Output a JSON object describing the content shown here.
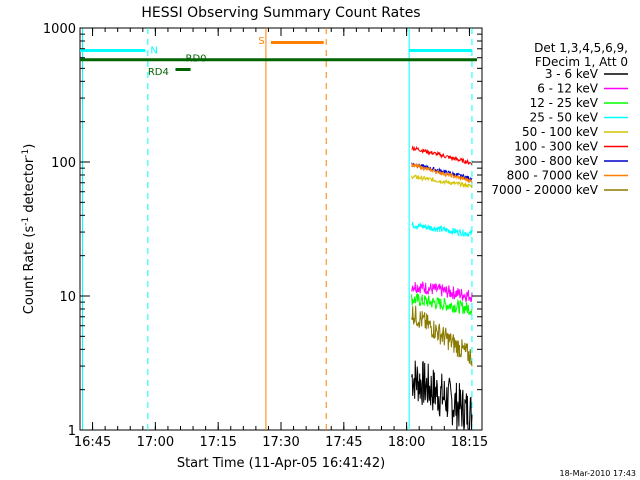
{
  "chart_data": {
    "type": "line",
    "title": "HESSI Observing Summary Count Rates",
    "xlabel": "Start Time (11-Apr-05 16:41:42)",
    "ylabel_main": "Count Rate (s",
    "ylabel_sup1": "-1",
    "ylabel_mid": " detector",
    "ylabel_sup2": "-1",
    "ylabel_end": ")",
    "y_scale": "log",
    "ylim": [
      1,
      1000
    ],
    "xlim_minutes": [
      16.7,
      18.3
    ],
    "xlim_clock": [
      "16:41:42",
      "18:20:00"
    ],
    "x_ticks": [
      {
        "label": "16:45",
        "min": 16.75
      },
      {
        "label": "17:00",
        "min": 17.0
      },
      {
        "label": "17:15",
        "min": 17.25
      },
      {
        "label": "17:30",
        "min": 17.5
      },
      {
        "label": "17:45",
        "min": 17.75
      },
      {
        "label": "18:00",
        "min": 18.0
      },
      {
        "label": "18:15",
        "min": 18.25
      }
    ],
    "y_ticks": [
      {
        "label": "1",
        "v": 1
      },
      {
        "label": "10",
        "v": 10
      },
      {
        "label": "100",
        "v": 100
      },
      {
        "label": "1000",
        "v": 1000
      }
    ],
    "legend": {
      "placement": "right",
      "header": [
        "Det 1,3,4,5,6,9,",
        "FDecim 1, Att 0"
      ],
      "entries": [
        {
          "label": "3 - 6 keV",
          "color": "#000000"
        },
        {
          "label": "6 - 12 keV",
          "color": "#ff00ff"
        },
        {
          "label": "12 - 25 keV",
          "color": "#00ff00"
        },
        {
          "label": "25 - 50 keV",
          "color": "#00ffff"
        },
        {
          "label": "50 - 100 keV",
          "color": "#d4c400"
        },
        {
          "label": "100 - 300 keV",
          "color": "#ff0000"
        },
        {
          "label": "300 - 800 keV",
          "color": "#0000cc"
        },
        {
          "label": "800 - 7000 keV",
          "color": "#ff8000"
        },
        {
          "label": "7000 - 20000 keV",
          "color": "#8b7a00"
        }
      ]
    },
    "series": [
      {
        "name": "3 - 6 keV",
        "color": "#000000",
        "start": 18.02,
        "end": 18.26,
        "v_start": 2.5,
        "v_end": 1.3,
        "noise": 0.18
      },
      {
        "name": "6 - 12 keV",
        "color": "#ff00ff",
        "start": 18.02,
        "end": 18.26,
        "v_start": 12,
        "v_end": 10,
        "noise": 0.05
      },
      {
        "name": "12 - 25 keV",
        "color": "#00ff00",
        "start": 18.02,
        "end": 18.26,
        "v_start": 9.5,
        "v_end": 8,
        "noise": 0.05
      },
      {
        "name": "25 - 50 keV",
        "color": "#00ffff",
        "start": 18.02,
        "end": 18.26,
        "v_start": 34,
        "v_end": 29,
        "noise": 0.025
      },
      {
        "name": "50 - 100 keV",
        "color": "#d4c400",
        "start": 18.02,
        "end": 18.26,
        "v_start": 78,
        "v_end": 66,
        "noise": 0.015
      },
      {
        "name": "100 - 300 keV",
        "color": "#ff0000",
        "start": 18.02,
        "end": 18.26,
        "v_start": 128,
        "v_end": 98,
        "noise": 0.015
      },
      {
        "name": "300 - 800 keV",
        "color": "#0000cc",
        "start": 18.02,
        "end": 18.26,
        "v_start": 97,
        "v_end": 75,
        "noise": 0.015
      },
      {
        "name": "800 - 7000 keV",
        "color": "#ff8000",
        "start": 18.02,
        "end": 18.26,
        "v_start": 95,
        "v_end": 72,
        "noise": 0.015
      },
      {
        "name": "7000 - 20000 keV",
        "color": "#8b7a00",
        "start": 18.02,
        "end": 18.26,
        "v_start": 7.5,
        "v_end": 3.5,
        "noise": 0.08
      }
    ],
    "markers": {
      "vlines": [
        {
          "min": 16.71,
          "color": "#00ffff",
          "dash": false
        },
        {
          "min": 16.97,
          "color": "#00ffff",
          "dash": true
        },
        {
          "min": 17.44,
          "color": "#ff8000",
          "dash": false
        },
        {
          "min": 17.68,
          "color": "#ff8000",
          "dash": true
        },
        {
          "min": 18.01,
          "color": "#00ffff",
          "dash": false
        },
        {
          "min": 18.26,
          "color": "#00ffff",
          "dash": true
        }
      ],
      "bars": [
        {
          "x0": 16.7,
          "x1": 16.96,
          "v": 680,
          "color": "#00ffff",
          "label": "N",
          "label_min": 16.98,
          "label_v": 680
        },
        {
          "x0": 18.01,
          "x1": 18.26,
          "v": 680,
          "color": "#00ffff",
          "label": "",
          "label_min": 0,
          "label_v": 0
        },
        {
          "x0": 17.46,
          "x1": 17.67,
          "v": 780,
          "color": "#ff8000",
          "label": "S",
          "label_min": 17.41,
          "label_v": 800
        },
        {
          "x0": 16.7,
          "x1": 18.28,
          "v": 580,
          "color": "#006400",
          "label": "RD0",
          "label_min": 17.12,
          "label_v": 590
        },
        {
          "x0": 17.08,
          "x1": 17.14,
          "v": 490,
          "color": "#006400",
          "label": "RD4",
          "label_min": 16.97,
          "label_v": 470
        }
      ]
    }
  },
  "footer_timestamp": "18-Mar-2010 17:43"
}
